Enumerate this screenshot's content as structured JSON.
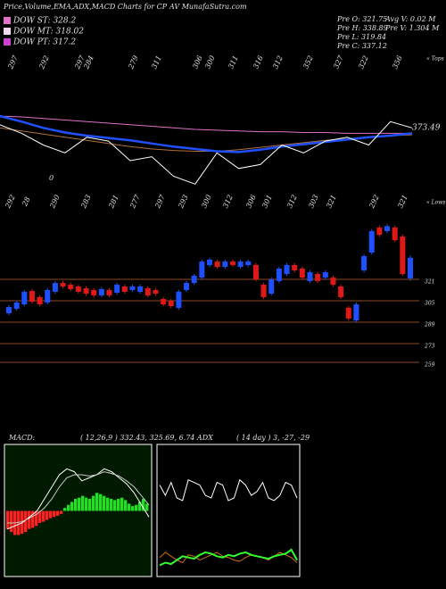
{
  "header": {
    "title": "Price,Volume,EMA,ADX,MACD Charts for CP",
    "site": "AV MunafaSutra.com",
    "legend": [
      {
        "label": "DOW ST: 328.2",
        "color": "#e070c8"
      },
      {
        "label": "DOW MT: 318.02",
        "color": "#f0d8f0"
      },
      {
        "label": "DOW PT: 317.2",
        "color": "#d040d0"
      }
    ],
    "stats": [
      "Pre O: 321.75",
      "Avg V: 0.02 M",
      "Pre H: 338.89",
      "Pre V: 1.304 M",
      "Pre L: 319.84",
      "Pre C: 337.12"
    ]
  },
  "chart_data": [
    {
      "type": "ema",
      "annotation": "373.49",
      "top_labels": [
        "297",
        "292",
        "297",
        "284",
        "279",
        "311",
        "306",
        "300",
        "311",
        "316",
        "312",
        "352",
        "327",
        "322",
        "356"
      ],
      "bottom_labels": [
        "292",
        "28",
        "290",
        "283",
        "281",
        "277",
        "297",
        "293",
        "300",
        "312",
        "306",
        "301",
        "312",
        "303",
        "321",
        "292",
        "321"
      ],
      "zero_label": "0",
      "tops_label": "« Tops",
      "lows_label": "« Lows",
      "ylim": [
        280,
        400
      ],
      "series": [
        {
          "color": "#e070c8",
          "values": [
            377,
            376,
            374,
            372,
            370,
            368,
            366,
            364,
            362,
            360,
            359,
            358,
            357,
            357,
            356,
            356,
            355,
            355,
            355,
            355
          ]
        },
        {
          "color": "#b07040",
          "values": [
            362,
            358,
            354,
            350,
            346,
            342,
            338,
            335,
            333,
            332,
            332,
            334,
            337,
            340,
            343,
            346,
            348,
            350,
            352,
            353
          ]
        },
        {
          "color": "#2050ff",
          "values": [
            377,
            370,
            362,
            356,
            352,
            349,
            346,
            342,
            338,
            335,
            332,
            331,
            334,
            338,
            341,
            344,
            347,
            350,
            352,
            355
          ]
        },
        {
          "color": "#ffffff",
          "values": [
            366,
            355,
            340,
            330,
            350,
            345,
            320,
            325,
            300,
            290,
            330,
            310,
            315,
            340,
            330,
            345,
            350,
            340,
            370,
            362
          ]
        }
      ]
    },
    {
      "type": "candlestick",
      "ylim": [
        255,
        363
      ],
      "yticks": [
        321,
        305,
        289,
        273,
        259
      ],
      "up_color": "#1e50ff",
      "down_color": "#e01818",
      "grid_color": "#8b4a2a",
      "open": [
        295.7,
        299,
        302.3,
        312.3,
        307.7,
        303.7,
        311.7,
        318.3,
        317,
        315.7,
        314.3,
        313,
        309,
        313,
        311,
        315.7,
        313,
        311.7,
        314.3,
        313,
        306.3,
        305,
        299.7,
        313,
        318.3,
        322.3,
        331.7,
        334.3,
        330.3,
        334.3,
        330.3,
        331.7,
        331.7,
        317,
        310.3,
        319.7,
        325,
        331.7,
        329,
        319.7,
        325,
        322.3,
        322.3,
        315.7,
        299.7,
        290.3,
        327.7,
        341,
        359.7,
        357,
        359.7,
        353,
        321.75
      ],
      "high": [
        301.8,
        305.2,
        313.2,
        313.8,
        309.2,
        314.5,
        319.8,
        319.8,
        318.5,
        317.2,
        315.8,
        314.5,
        315.2,
        314.5,
        318.5,
        317.2,
        317.2,
        317.2,
        315.8,
        314.5,
        307.8,
        306.5,
        313.2,
        319.8,
        325.2,
        335.8,
        337.2,
        335.8,
        335.8,
        335.8,
        335.8,
        335.8,
        333.2,
        318.5,
        322.5,
        330.5,
        333.2,
        333.2,
        330.5,
        327.8,
        326.5,
        327.8,
        323.8,
        317.2,
        301.2,
        303.8,
        339.8,
        358.5,
        361.2,
        362.2,
        361.2,
        354.5,
        338.89
      ],
      "low": [
        294.2,
        297.5,
        300.8,
        302.8,
        300.8,
        302.2,
        310.2,
        314.2,
        312.2,
        310.2,
        308.8,
        307.5,
        307.5,
        307.5,
        309.5,
        310.2,
        311.5,
        310.2,
        307.5,
        308.8,
        300.8,
        299.5,
        298.2,
        311.5,
        316.8,
        320.8,
        330.2,
        328.8,
        328.8,
        330.2,
        328.8,
        330.2,
        319.5,
        306.2,
        308.8,
        318.2,
        323.5,
        326.2,
        320.8,
        318.2,
        318.2,
        320.8,
        315.5,
        306.2,
        290.2,
        288.8,
        326.2,
        339.5,
        352.8,
        355.5,
        348.8,
        323.5,
        319.84
      ],
      "close": [
        300.3,
        303.7,
        311.7,
        304.3,
        302.3,
        313,
        318.3,
        315.7,
        313.7,
        311.7,
        310.3,
        309,
        313.7,
        309,
        317,
        311.7,
        315.7,
        315.7,
        309,
        310.3,
        302.3,
        301,
        311.7,
        318.3,
        323.7,
        334.3,
        335.7,
        330.3,
        334.3,
        331.7,
        334.3,
        334.3,
        321,
        307.7,
        321,
        329,
        331.7,
        327.7,
        322.3,
        326.3,
        319.7,
        326.3,
        317,
        307.7,
        291.7,
        302.3,
        338.3,
        357,
        354.3,
        360.7,
        350.3,
        325,
        337.12
      ]
    },
    {
      "type": "macd",
      "title": "MACD:",
      "subtitle": "( 12,26,9 ) 332.43, 325.69, 6.74 ADX",
      "ylim": [
        -1,
        1
      ],
      "pos_color": "#20e020",
      "neg_color": "#ff2020",
      "histogram": [
        -0.3,
        -0.35,
        -0.4,
        -0.4,
        -0.38,
        -0.35,
        -0.3,
        -0.28,
        -0.25,
        -0.2,
        -0.18,
        -0.15,
        -0.12,
        -0.1,
        -0.08,
        -0.05,
        0.05,
        0.1,
        0.15,
        0.2,
        0.22,
        0.25,
        0.22,
        0.2,
        0.25,
        0.3,
        0.28,
        0.25,
        0.22,
        0.2,
        0.18,
        0.2,
        0.22,
        0.18,
        0.12,
        0.08,
        0.1,
        0.15,
        0.2,
        0.12
      ],
      "series": [
        {
          "color": "#ffffff",
          "values": [
            -0.3,
            -0.25,
            -0.2,
            -0.1,
            0,
            0.2,
            0.4,
            0.6,
            0.7,
            0.65,
            0.5,
            0.55,
            0.6,
            0.7,
            0.65,
            0.55,
            0.45,
            0.3,
            0.1,
            -0.1
          ]
        },
        {
          "color": "#c8c8c8",
          "values": [
            -0.2,
            -0.2,
            -0.18,
            -0.12,
            -0.05,
            0.05,
            0.2,
            0.4,
            0.55,
            0.6,
            0.6,
            0.58,
            0.6,
            0.65,
            0.62,
            0.58,
            0.5,
            0.4,
            0.25,
            0.1
          ]
        }
      ]
    },
    {
      "type": "adx",
      "title": "( 14 day ) 3, -27, -29",
      "ylim": [
        0,
        100
      ],
      "series": [
        {
          "color": "#ffffff",
          "values": [
            70,
            62,
            72,
            60,
            58,
            74,
            72,
            70,
            62,
            60,
            72,
            70,
            58,
            60,
            74,
            70,
            62,
            65,
            72,
            60,
            58,
            62,
            72,
            70,
            60
          ]
        },
        {
          "color": "#d07020",
          "values": [
            14,
            18,
            15,
            12,
            10,
            16,
            15,
            12,
            14,
            16,
            18,
            15,
            14,
            12,
            11,
            14,
            16,
            15,
            14,
            12,
            15,
            18,
            16,
            14,
            10
          ]
        },
        {
          "color": "#30ff30",
          "values": [
            8,
            10,
            9,
            12,
            15,
            14,
            13,
            16,
            18,
            17,
            15,
            14,
            16,
            15,
            17,
            18,
            16,
            15,
            14,
            13,
            15,
            16,
            17,
            20,
            12
          ]
        }
      ]
    }
  ]
}
